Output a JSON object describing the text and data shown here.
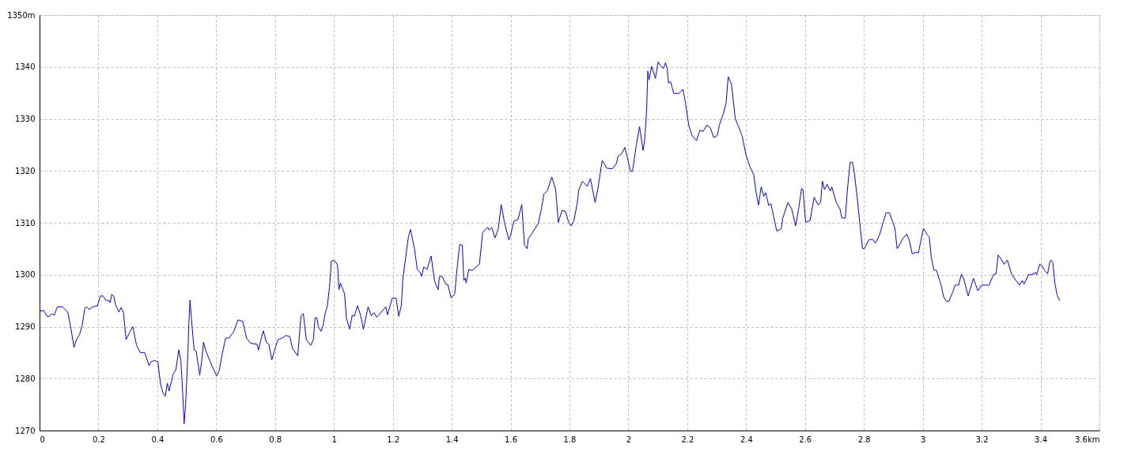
{
  "chart_data": {
    "type": "line",
    "x": [
      0,
      0.014,
      0.025,
      0.034,
      0.041,
      0.05,
      0.06,
      0.078,
      0.096,
      0.107,
      0.117,
      0.125,
      0.136,
      0.145,
      0.154,
      0.16,
      0.169,
      0.18,
      0.196,
      0.207,
      0.216,
      0.225,
      0.236,
      0.24,
      0.245,
      0.252,
      0.258,
      0.27,
      0.277,
      0.285,
      0.294,
      0.305,
      0.317,
      0.329,
      0.342,
      0.357,
      0.372,
      0.378,
      0.391,
      0.402,
      0.411,
      0.42,
      0.427,
      0.434,
      0.44,
      0.454,
      0.463,
      0.473,
      0.48,
      0.487,
      0.491,
      0.496,
      0.504,
      0.507,
      0.511,
      0.518,
      0.525,
      0.532,
      0.544,
      0.551,
      0.557,
      0.565,
      0.583,
      0.601,
      0.61,
      0.619,
      0.632,
      0.643,
      0.654,
      0.66,
      0.674,
      0.69,
      0.696,
      0.703,
      0.717,
      0.739,
      0.744,
      0.752,
      0.76,
      0.77,
      0.779,
      0.789,
      0.801,
      0.81,
      0.824,
      0.837,
      0.85,
      0.859,
      0.877,
      0.888,
      0.896,
      0.906,
      0.921,
      0.93,
      0.936,
      0.942,
      0.947,
      0.956,
      0.962,
      0.971,
      0.977,
      0.985,
      0.991,
      1.001,
      1.012,
      1.017,
      1.022,
      1.036,
      1.042,
      1.053,
      1.062,
      1.069,
      1.08,
      1.09,
      1.1,
      1.116,
      1.127,
      1.136,
      1.145,
      1.158,
      1.176,
      1.182,
      1.198,
      1.211,
      1.22,
      1.229,
      1.234,
      1.247,
      1.253,
      1.26,
      1.274,
      1.283,
      1.292,
      1.298,
      1.305,
      1.316,
      1.33,
      1.342,
      1.354,
      1.358,
      1.367,
      1.381,
      1.387,
      1.398,
      1.41,
      1.419,
      1.427,
      1.436,
      1.441,
      1.446,
      1.449,
      1.458,
      1.469,
      1.483,
      1.494,
      1.505,
      1.514,
      1.523,
      1.527,
      1.536,
      1.547,
      1.558,
      1.568,
      1.579,
      1.594,
      1.6,
      1.611,
      1.625,
      1.638,
      1.647,
      1.656,
      1.66,
      1.671,
      1.682,
      1.694,
      1.703,
      1.713,
      1.725,
      1.74,
      1.753,
      1.762,
      1.775,
      1.786,
      1.797,
      1.806,
      1.815,
      1.826,
      1.832,
      1.844,
      1.86,
      1.871,
      1.887,
      1.896,
      1.911,
      1.927,
      1.946,
      1.959,
      1.965,
      1.977,
      1.988,
      1.997,
      2.007,
      2.014,
      2.027,
      2.038,
      2.05,
      2.056,
      2.062,
      2.066,
      2.07,
      2.079,
      2.092,
      2.101,
      2.11,
      2.119,
      2.126,
      2.132,
      2.136,
      2.143,
      2.154,
      2.172,
      2.185,
      2.194,
      2.205,
      2.216,
      2.231,
      2.243,
      2.254,
      2.267,
      2.278,
      2.29,
      2.302,
      2.309,
      2.323,
      2.332,
      2.339,
      2.35,
      2.363,
      2.372,
      2.386,
      2.399,
      2.412,
      2.426,
      2.433,
      2.442,
      2.451,
      2.46,
      2.466,
      2.477,
      2.484,
      2.504,
      2.519,
      2.524,
      2.542,
      2.555,
      2.568,
      2.579,
      2.588,
      2.593,
      2.602,
      2.617,
      2.631,
      2.645,
      2.653,
      2.659,
      2.666,
      2.675,
      2.686,
      2.691,
      2.706,
      2.719,
      2.725,
      2.737,
      2.744,
      2.753,
      2.761,
      2.768,
      2.777,
      2.795,
      2.801,
      2.817,
      2.83,
      2.839,
      2.852,
      2.875,
      2.887,
      2.905,
      2.913,
      2.933,
      2.945,
      2.954,
      2.964,
      2.976,
      2.985,
      3.002,
      3.015,
      3.022,
      3.029,
      3.038,
      3.047,
      3.062,
      3.071,
      3.08,
      3.089,
      3.102,
      3.11,
      3.122,
      3.131,
      3.139,
      3.154,
      3.172,
      3.187,
      3.2,
      3.225,
      3.24,
      3.249,
      3.256,
      3.264,
      3.276,
      3.287,
      3.302,
      3.316,
      3.329,
      3.338,
      3.344,
      3.359,
      3.369,
      3.383,
      3.387,
      3.397,
      3.405,
      3.414,
      3.424,
      3.432,
      3.436,
      3.442,
      3.448,
      3.456,
      3.465
    ],
    "series": [
      {
        "color": "#0000ff",
        "values": [
          1293.0,
          1293.1,
          1292.0,
          1292.0,
          1292.5,
          1292.2,
          1293.8,
          1293.8,
          1292.8,
          1289.5,
          1286.0,
          1287.5,
          1288.5,
          1290.3,
          1293.6,
          1293.8,
          1293.3,
          1293.8,
          1294.0,
          1295.9,
          1295.9,
          1295.1,
          1295.0,
          1294.6,
          1296.2,
          1295.9,
          1294.2,
          1292.8,
          1293.7,
          1292.7,
          1287.5,
          1288.8,
          1290.0,
          1286.5,
          1285.0,
          1285.0,
          1282.5,
          1283.2,
          1283.5,
          1283.2,
          1278.9,
          1277.1,
          1276.6,
          1279.1,
          1277.6,
          1280.9,
          1281.7,
          1285.5,
          1283.5,
          1276.4,
          1271.3,
          1274.9,
          1285.0,
          1290.6,
          1295.1,
          1290.1,
          1285.5,
          1285.3,
          1280.7,
          1283.5,
          1287.0,
          1285.3,
          1282.8,
          1280.5,
          1281.5,
          1284.3,
          1287.8,
          1287.8,
          1288.6,
          1289.1,
          1291.3,
          1291.0,
          1289.6,
          1287.8,
          1286.8,
          1286.6,
          1285.5,
          1287.5,
          1289.2,
          1287.0,
          1286.6,
          1283.6,
          1286.0,
          1287.5,
          1287.8,
          1288.3,
          1288.1,
          1285.8,
          1284.4,
          1292.1,
          1292.5,
          1287.5,
          1286.4,
          1287.5,
          1291.7,
          1291.7,
          1290.0,
          1289.1,
          1290.0,
          1292.8,
          1293.8,
          1297.6,
          1302.6,
          1302.8,
          1301.9,
          1297.1,
          1298.4,
          1296.3,
          1291.8,
          1289.5,
          1292.2,
          1292.0,
          1294.0,
          1292.3,
          1289.5,
          1293.8,
          1292.1,
          1292.7,
          1291.8,
          1292.6,
          1293.8,
          1292.3,
          1295.5,
          1295.5,
          1292.0,
          1294.1,
          1299.2,
          1304.8,
          1307.3,
          1308.7,
          1304.8,
          1301.0,
          1300.5,
          1299.7,
          1301.5,
          1301.0,
          1303.6,
          1298.7,
          1297.1,
          1299.6,
          1299.7,
          1298.1,
          1298.1,
          1295.5,
          1296.3,
          1301.7,
          1305.8,
          1305.7,
          1298.9,
          1299.3,
          1298.4,
          1301.0,
          1300.8,
          1301.5,
          1302.0,
          1308.1,
          1308.7,
          1309.1,
          1308.6,
          1309.1,
          1307.1,
          1308.8,
          1313.5,
          1310.1,
          1306.7,
          1307.6,
          1310.3,
          1310.6,
          1313.5,
          1305.7,
          1305.0,
          1306.9,
          1307.8,
          1308.8,
          1309.9,
          1312.2,
          1315.5,
          1316.2,
          1318.8,
          1316.4,
          1310.1,
          1312.4,
          1312.2,
          1310.1,
          1309.4,
          1310.4,
          1313.7,
          1316.4,
          1318.0,
          1317.0,
          1318.5,
          1313.9,
          1316.4,
          1322.0,
          1320.5,
          1320.4,
          1321.4,
          1322.8,
          1323.3,
          1324.5,
          1322.5,
          1319.9,
          1319.9,
          1325.0,
          1328.5,
          1323.9,
          1326.3,
          1331.6,
          1339.2,
          1337.5,
          1340.1,
          1337.8,
          1341.0,
          1340.2,
          1339.7,
          1340.8,
          1339.7,
          1336.9,
          1337.2,
          1334.9,
          1334.9,
          1335.7,
          1333.1,
          1328.8,
          1326.8,
          1325.8,
          1327.8,
          1327.6,
          1328.8,
          1328.3,
          1326.4,
          1326.8,
          1328.8,
          1331.1,
          1333.1,
          1338.1,
          1336.7,
          1330.1,
          1328.8,
          1326.8,
          1323.2,
          1320.9,
          1319.2,
          1316.1,
          1313.4,
          1316.9,
          1315.1,
          1315.8,
          1313.3,
          1313.7,
          1308.4,
          1308.8,
          1310.8,
          1313.9,
          1312.6,
          1309.4,
          1312.9,
          1316.6,
          1316.4,
          1310.1,
          1310.4,
          1314.9,
          1313.4,
          1314.0,
          1318.0,
          1316.4,
          1317.4,
          1316.1,
          1316.9,
          1313.9,
          1312.6,
          1310.9,
          1310.9,
          1316.4,
          1321.6,
          1321.7,
          1319.4,
          1314.9,
          1305.1,
          1305.0,
          1306.7,
          1306.8,
          1306.1,
          1307.5,
          1311.9,
          1311.9,
          1309.0,
          1305.0,
          1307.0,
          1307.8,
          1306.7,
          1304.0,
          1304.3,
          1304.2,
          1308.9,
          1307.7,
          1307.3,
          1303.2,
          1300.9,
          1300.8,
          1298.0,
          1295.7,
          1294.9,
          1294.9,
          1296.7,
          1298.0,
          1298.0,
          1300.1,
          1299.2,
          1295.9,
          1299.3,
          1296.9,
          1298.0,
          1298.0,
          1300.0,
          1300.2,
          1303.8,
          1303.2,
          1302.0,
          1302.8,
          1300.1,
          1298.9,
          1298.0,
          1298.9,
          1298.2,
          1300.0,
          1300.0,
          1300.4,
          1300.0,
          1302.0,
          1301.7,
          1300.8,
          1300.2,
          1302.6,
          1302.8,
          1302.2,
          1298.6,
          1296.1,
          1295.0
        ]
      }
    ],
    "xlim": [
      0,
      3.6
    ],
    "xticks": [
      0,
      0.2,
      0.4,
      0.6,
      0.8,
      1,
      1.2,
      1.4,
      1.6,
      1.8,
      2,
      2.2,
      2.4,
      2.6,
      2.8,
      3,
      3.2,
      3.4,
      {
        "value": 3.6,
        "label": "3.6km"
      }
    ],
    "ylim": [
      1270,
      1350
    ],
    "yticks": [
      1270,
      1280,
      1290,
      1300,
      1310,
      1320,
      1330,
      1340,
      {
        "value": 1350,
        "label": "1350m"
      }
    ],
    "grid": true
  }
}
